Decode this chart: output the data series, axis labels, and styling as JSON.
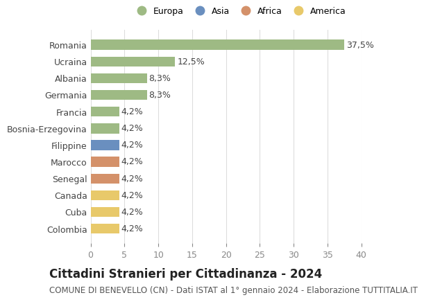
{
  "countries": [
    "Romania",
    "Ucraina",
    "Albania",
    "Germania",
    "Francia",
    "Bosnia-Erzegovina",
    "Filippine",
    "Marocco",
    "Senegal",
    "Canada",
    "Cuba",
    "Colombia"
  ],
  "values": [
    37.5,
    12.5,
    8.3,
    8.3,
    4.2,
    4.2,
    4.2,
    4.2,
    4.2,
    4.2,
    4.2,
    4.2
  ],
  "labels": [
    "37,5%",
    "12,5%",
    "8,3%",
    "8,3%",
    "4,2%",
    "4,2%",
    "4,2%",
    "4,2%",
    "4,2%",
    "4,2%",
    "4,2%",
    "4,2%"
  ],
  "continents": [
    "Europa",
    "Europa",
    "Europa",
    "Europa",
    "Europa",
    "Europa",
    "Asia",
    "Africa",
    "Africa",
    "America",
    "America",
    "America"
  ],
  "continent_colors": {
    "Europa": "#9eba84",
    "Asia": "#6a8fbf",
    "Africa": "#d4916a",
    "America": "#e8c96a"
  },
  "legend_order": [
    "Europa",
    "Asia",
    "Africa",
    "America"
  ],
  "title": "Cittadini Stranieri per Cittadinanza - 2024",
  "subtitle": "COMUNE DI BENEVELLO (CN) - Dati ISTAT al 1° gennaio 2024 - Elaborazione TUTTITALIA.IT",
  "xlim": [
    0,
    40
  ],
  "xticks": [
    0,
    5,
    10,
    15,
    20,
    25,
    30,
    35,
    40
  ],
  "background_color": "#ffffff",
  "grid_color": "#dddddd",
  "label_fontsize": 9,
  "tick_fontsize": 9,
  "title_fontsize": 12,
  "subtitle_fontsize": 8.5
}
